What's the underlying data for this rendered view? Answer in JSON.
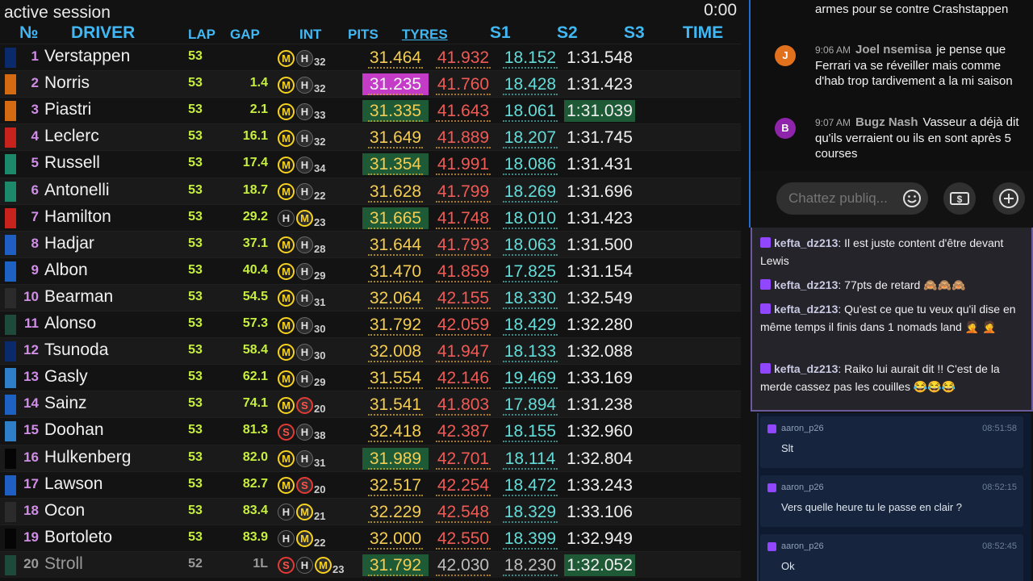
{
  "session": {
    "status": "active session",
    "clock": "0:00"
  },
  "headers": {
    "pos": "№",
    "driver": "DRIVER",
    "lap": "LAP",
    "gap": "GAP",
    "int": "INT",
    "pits": "PITS",
    "tyres": "TYRES",
    "s1": "S1",
    "s2": "S2",
    "s3": "S3",
    "time": "TIME"
  },
  "rows": [
    {
      "pos": "1",
      "driver": "Verstappen",
      "lap": "53",
      "gap": "",
      "tyres": [
        "M",
        "H"
      ],
      "tyre_laps": "32",
      "s1": "31.464",
      "s2": "41.932",
      "s3": "18.152",
      "time": "1:31.548",
      "team_color": "#0b2a6b",
      "hl": []
    },
    {
      "pos": "2",
      "driver": "Norris",
      "lap": "53",
      "gap": "1.4",
      "tyres": [
        "M",
        "H"
      ],
      "tyre_laps": "32",
      "s1": "31.235",
      "s2": "41.760",
      "s3": "18.428",
      "time": "1:31.423",
      "team_color": "#d46b12",
      "hl": [
        "s1:purple"
      ]
    },
    {
      "pos": "3",
      "driver": "Piastri",
      "lap": "53",
      "gap": "2.1",
      "tyres": [
        "M",
        "H"
      ],
      "tyre_laps": "33",
      "s1": "31.335",
      "s2": "41.643",
      "s3": "18.061",
      "time": "1:31.039",
      "team_color": "#d46b12",
      "hl": [
        "s1:green",
        "time:green"
      ]
    },
    {
      "pos": "4",
      "driver": "Leclerc",
      "lap": "53",
      "gap": "16.1",
      "tyres": [
        "M",
        "H"
      ],
      "tyre_laps": "32",
      "s1": "31.649",
      "s2": "41.889",
      "s3": "18.207",
      "time": "1:31.745",
      "team_color": "#c8221c",
      "hl": []
    },
    {
      "pos": "5",
      "driver": "Russell",
      "lap": "53",
      "gap": "17.4",
      "tyres": [
        "M",
        "H"
      ],
      "tyre_laps": "34",
      "s1": "31.354",
      "s2": "41.991",
      "s3": "18.086",
      "time": "1:31.431",
      "team_color": "#1c8a6a",
      "hl": [
        "s1:green"
      ]
    },
    {
      "pos": "6",
      "driver": "Antonelli",
      "lap": "53",
      "gap": "18.7",
      "tyres": [
        "M",
        "H"
      ],
      "tyre_laps": "22",
      "s1": "31.628",
      "s2": "41.799",
      "s3": "18.269",
      "time": "1:31.696",
      "team_color": "#1c8a6a",
      "hl": []
    },
    {
      "pos": "7",
      "driver": "Hamilton",
      "lap": "53",
      "gap": "29.2",
      "tyres": [
        "H",
        "M"
      ],
      "tyre_laps": "23",
      "s1": "31.665",
      "s2": "41.748",
      "s3": "18.010",
      "time": "1:31.423",
      "team_color": "#c8221c",
      "hl": [
        "s1:green"
      ]
    },
    {
      "pos": "8",
      "driver": "Hadjar",
      "lap": "53",
      "gap": "37.1",
      "tyres": [
        "M",
        "H"
      ],
      "tyre_laps": "28",
      "s1": "31.644",
      "s2": "41.793",
      "s3": "18.063",
      "time": "1:31.500",
      "team_color": "#1f5fc4",
      "hl": []
    },
    {
      "pos": "9",
      "driver": "Albon",
      "lap": "53",
      "gap": "40.4",
      "tyres": [
        "M",
        "H"
      ],
      "tyre_laps": "29",
      "s1": "31.470",
      "s2": "41.859",
      "s3": "17.825",
      "time": "1:31.154",
      "team_color": "#1d62c2",
      "hl": []
    },
    {
      "pos": "10",
      "driver": "Bearman",
      "lap": "53",
      "gap": "54.5",
      "tyres": [
        "M",
        "H"
      ],
      "tyre_laps": "31",
      "s1": "32.064",
      "s2": "42.155",
      "s3": "18.330",
      "time": "1:32.549",
      "team_color": "#2b2b2b",
      "hl": []
    },
    {
      "pos": "11",
      "driver": "Alonso",
      "lap": "53",
      "gap": "57.3",
      "tyres": [
        "M",
        "H"
      ],
      "tyre_laps": "30",
      "s1": "31.792",
      "s2": "42.059",
      "s3": "18.429",
      "time": "1:32.280",
      "team_color": "#1d4a3a",
      "hl": []
    },
    {
      "pos": "12",
      "driver": "Tsunoda",
      "lap": "53",
      "gap": "58.4",
      "tyres": [
        "M",
        "H"
      ],
      "tyre_laps": "30",
      "s1": "32.008",
      "s2": "41.947",
      "s3": "18.133",
      "time": "1:32.088",
      "team_color": "#0b2a6b",
      "hl": []
    },
    {
      "pos": "13",
      "driver": "Gasly",
      "lap": "53",
      "gap": "62.1",
      "tyres": [
        "M",
        "H"
      ],
      "tyre_laps": "29",
      "s1": "31.554",
      "s2": "42.146",
      "s3": "19.469",
      "time": "1:33.169",
      "team_color": "#2f7fc8",
      "hl": []
    },
    {
      "pos": "14",
      "driver": "Sainz",
      "lap": "53",
      "gap": "74.1",
      "tyres": [
        "M",
        "S"
      ],
      "tyre_laps": "20",
      "s1": "31.541",
      "s2": "41.803",
      "s3": "17.894",
      "time": "1:31.238",
      "team_color": "#1d62c2",
      "hl": []
    },
    {
      "pos": "15",
      "driver": "Doohan",
      "lap": "53",
      "gap": "81.3",
      "tyres": [
        "S",
        "H"
      ],
      "tyre_laps": "38",
      "s1": "32.418",
      "s2": "42.387",
      "s3": "18.155",
      "time": "1:32.960",
      "team_color": "#2f7fc8",
      "hl": []
    },
    {
      "pos": "16",
      "driver": "Hulkenberg",
      "lap": "53",
      "gap": "82.0",
      "tyres": [
        "M",
        "H"
      ],
      "tyre_laps": "31",
      "s1": "31.989",
      "s2": "42.701",
      "s3": "18.114",
      "time": "1:32.804",
      "team_color": "#050505",
      "hl": [
        "s1:green"
      ]
    },
    {
      "pos": "17",
      "driver": "Lawson",
      "lap": "53",
      "gap": "82.7",
      "tyres": [
        "M",
        "S"
      ],
      "tyre_laps": "20",
      "s1": "32.517",
      "s2": "42.254",
      "s3": "18.472",
      "time": "1:33.243",
      "team_color": "#1f5fc4",
      "hl": []
    },
    {
      "pos": "18",
      "driver": "Ocon",
      "lap": "53",
      "gap": "83.4",
      "tyres": [
        "H",
        "M"
      ],
      "tyre_laps": "21",
      "s1": "32.229",
      "s2": "42.548",
      "s3": "18.329",
      "time": "1:33.106",
      "team_color": "#2b2b2b",
      "hl": []
    },
    {
      "pos": "19",
      "driver": "Bortoleto",
      "lap": "53",
      "gap": "83.9",
      "tyres": [
        "H",
        "M"
      ],
      "tyre_laps": "22",
      "s1": "32.000",
      "s2": "42.550",
      "s3": "18.399",
      "time": "1:32.949",
      "team_color": "#050505",
      "hl": []
    },
    {
      "pos": "20",
      "driver": "Stroll",
      "lap": "52",
      "gap": "1L",
      "tyres": [
        "S",
        "H",
        "M"
      ],
      "tyre_laps": "23",
      "s1": "31.792",
      "s2": "42.030",
      "s3": "18.230",
      "time": "1:32.052",
      "team_color": "#1d4a3a",
      "hl": [
        "s1:green",
        "time:green"
      ]
    }
  ],
  "youtube_chat": {
    "top_fragment": "armes pour se contre Crashstappen",
    "messages": [
      {
        "avatar_letter": "J",
        "avatar_color": "#e2711d",
        "time": "9:06 AM",
        "author": "Joel nsemisa",
        "text": "je pense que Ferrari va se réveiller mais comme d'hab trop tardivement a la mi saison"
      },
      {
        "avatar_letter": "B",
        "avatar_color": "#8e24aa",
        "time": "9:07 AM",
        "author": "Bugz Nash",
        "text": "Vasseur a déjà dit qu'ils verraient ou ils en sont après 5 courses"
      }
    ],
    "input_placeholder": "Chattez publiq...",
    "icons": [
      "smile-icon",
      "dollar-icon",
      "plus-icon"
    ]
  },
  "twitch_chat": [
    {
      "user": "kefta_dz213",
      "text": ": Il est juste content d'être devant Lewis"
    },
    {
      "user": "kefta_dz213",
      "text": ": 77pts de retard 🙈🙈🙈"
    },
    {
      "user": "kefta_dz213",
      "text": ": Qu'est ce que tu veux qu'il dise en même temps il finis dans 1 nomads land 🤦 🤦"
    },
    {
      "user": "kefta_dz213",
      "text": ": Raiko lui aurait dit !! C'est de la merde cassez pas les couilles 😂😂😂"
    }
  ],
  "overlay_chat": [
    {
      "user": "aaron_p26",
      "time": "08:51:58",
      "text": "Slt"
    },
    {
      "user": "aaron_p26",
      "time": "08:52:15",
      "text": "Vers quelle heure tu le passe en clair ?"
    },
    {
      "user": "aaron_p26",
      "time": "08:52:45",
      "text": "Ok"
    }
  ]
}
